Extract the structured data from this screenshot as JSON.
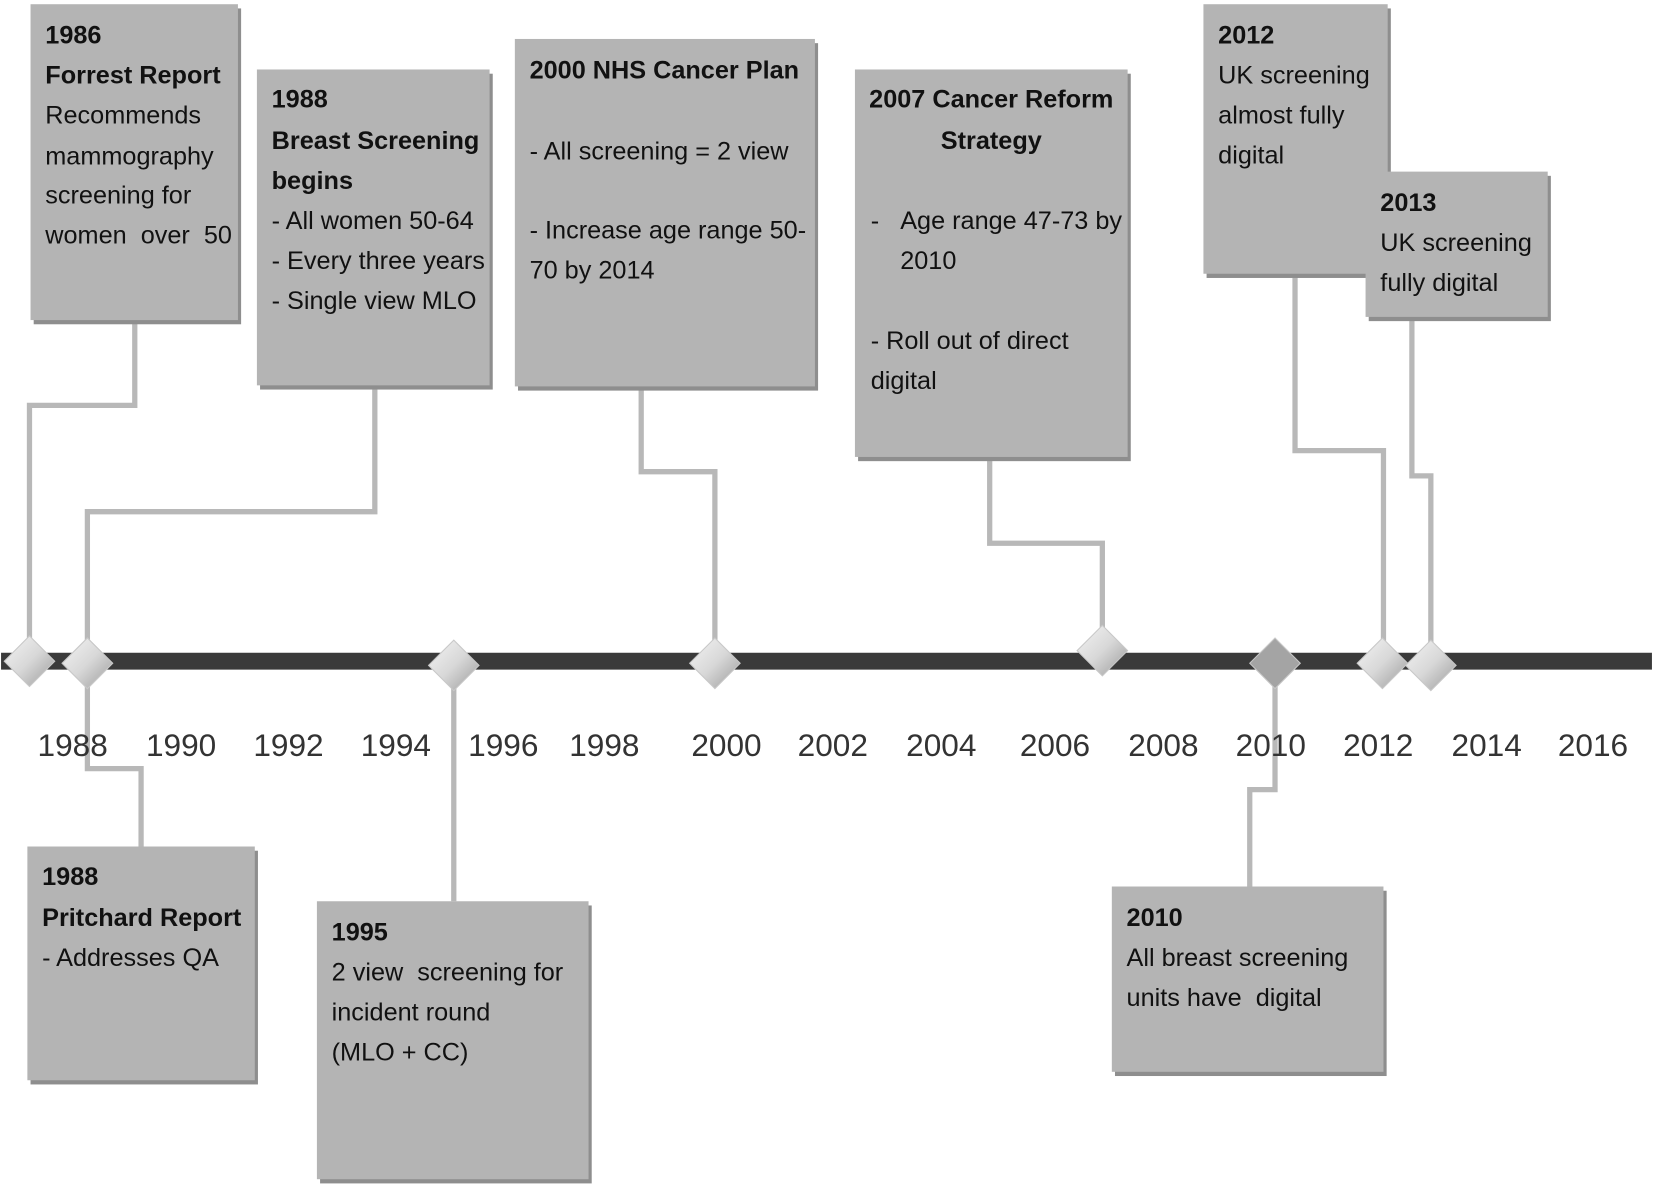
{
  "axis_labels": [
    "1988",
    "1990",
    "1992",
    "1994",
    "1996",
    "1998",
    "2000",
    "2002",
    "2004",
    "2006",
    "2008",
    "2010",
    "2012",
    "2014",
    "2016"
  ],
  "events": [
    {
      "title": [
        "1986",
        "Forrest Report"
      ],
      "body": [
        "Recommends",
        "mammography",
        "screening for",
        "women  over  50"
      ]
    },
    {
      "title": [
        "1988",
        "Breast Screening",
        "begins"
      ],
      "body": [
        "- All women 50-64",
        "- Every three years",
        "- Single view MLO"
      ]
    },
    {
      "title": [
        "2000 NHS Cancer Plan"
      ],
      "body": [
        "- All screening = 2 view",
        "- Increase age range 50-",
        "70 by 2014"
      ]
    },
    {
      "title": [
        "2007 Cancer Reform",
        "Strategy"
      ],
      "body": [
        "-",
        "Age range 47-73 by",
        "2010",
        "- Roll out of direct",
        "digital"
      ]
    },
    {
      "title": [
        "2012"
      ],
      "body": [
        "UK screening",
        "almost fully",
        "digital"
      ]
    },
    {
      "title": [
        "2013"
      ],
      "body": [
        "UK screening",
        "fully digital"
      ]
    },
    {
      "title": [
        "1988",
        "Pritchard Report"
      ],
      "body": [
        "- Addresses QA"
      ]
    },
    {
      "title": [
        "1995"
      ],
      "body": [
        "2 view  screening for",
        "incident round",
        "(MLO + CC)"
      ]
    },
    {
      "title": [
        "2010"
      ],
      "body": [
        "All breast screening",
        "units have  digital"
      ]
    }
  ]
}
